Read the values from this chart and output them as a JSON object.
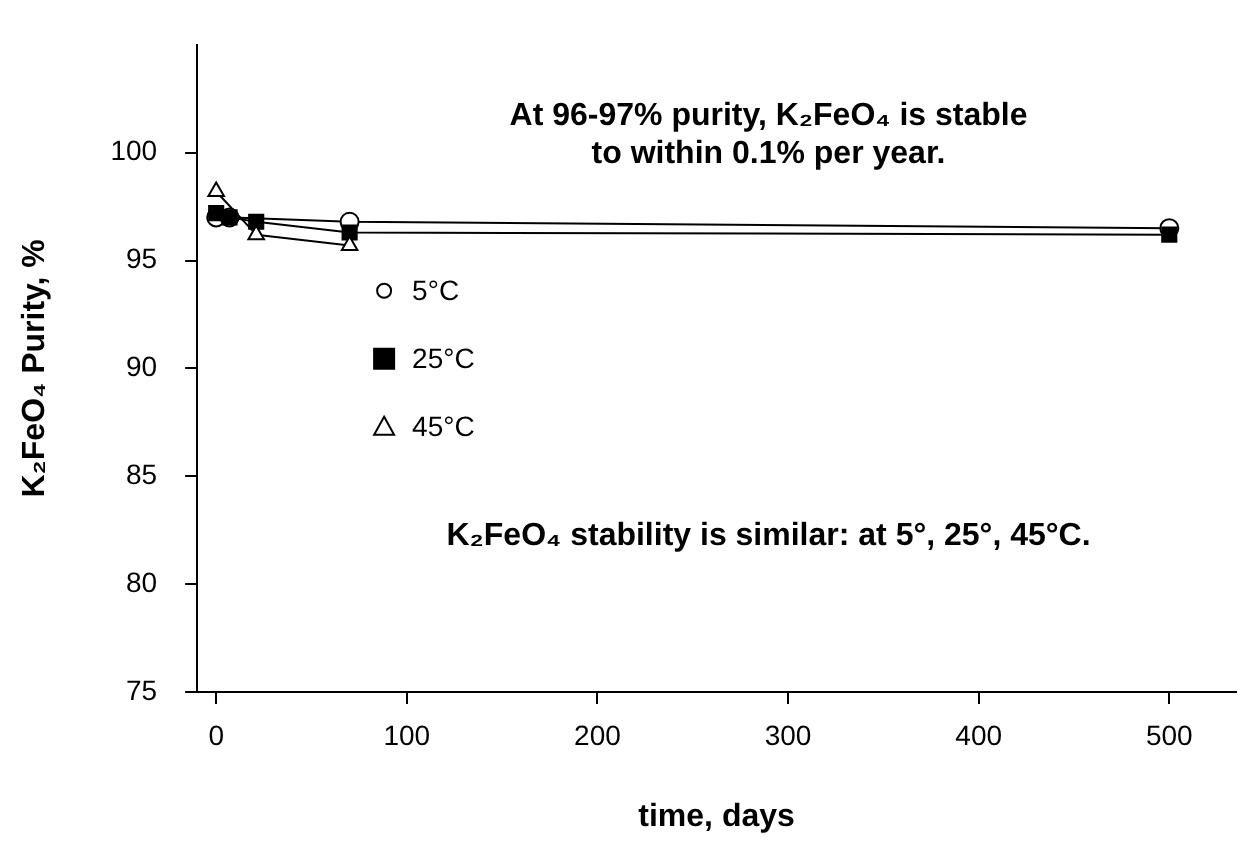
{
  "chart_data": {
    "type": "line",
    "xlabel": "time, days",
    "ylabel": "K₂FeO₄ Purity, %",
    "annotations": [
      "At 96-97% purity, K₂FeO₄ is stable\nto within 0.1% per year.",
      "K₂FeO₄ stability is similar: at 5°, 25°, 45°C."
    ],
    "series": [
      {
        "name": "5°C",
        "color": "#000000",
        "marker": "circle",
        "x": [
          0,
          7,
          70,
          500
        ],
        "values": [
          97.0,
          97.0,
          96.8,
          96.5
        ]
      },
      {
        "name": "25°C",
        "color": "#000000",
        "marker": "square",
        "x": [
          0,
          7,
          21,
          70,
          500
        ],
        "values": [
          97.2,
          97.0,
          96.8,
          96.3,
          96.2
        ]
      },
      {
        "name": "45°C",
        "color": "#000000",
        "marker": "triangle",
        "x": [
          0,
          21,
          70
        ],
        "values": [
          98.2,
          96.2,
          95.7
        ]
      }
    ],
    "xlim": [
      -10,
      535
    ],
    "xticks": [
      0,
      100,
      200,
      300,
      400,
      500
    ],
    "ylim": [
      75,
      105
    ],
    "yticks": [
      75,
      80,
      85,
      90,
      95,
      100
    ],
    "grid": false,
    "legend": "top left",
    "line_style": "solid"
  }
}
